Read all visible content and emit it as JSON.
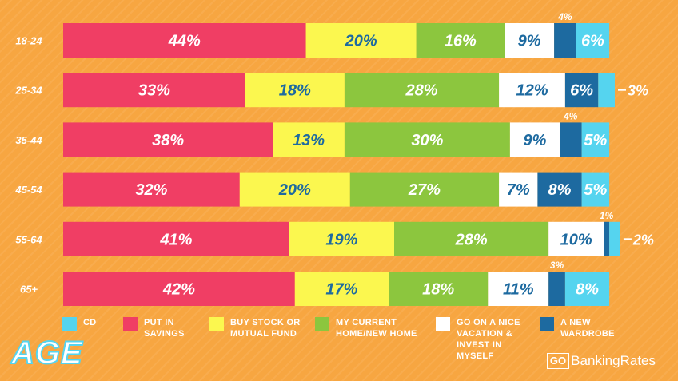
{
  "chart_data": {
    "type": "bar",
    "orientation": "horizontal",
    "stacked": true,
    "categories": [
      "18-24",
      "25-34",
      "35-44",
      "45-54",
      "55-64",
      "65+"
    ],
    "series": [
      {
        "name": "PUT IN SAVINGS",
        "color": "#f03e64",
        "text_color": "#ffffff",
        "values": [
          44,
          33,
          38,
          32,
          41,
          42
        ]
      },
      {
        "name": "BUY STOCK OR MUTUAL FUND",
        "color": "#fbf74f",
        "text_color": "#1d6aa0",
        "values": [
          20,
          18,
          13,
          20,
          19,
          17
        ]
      },
      {
        "name": "MY CURRENT HOME/NEW HOME",
        "color": "#8cc63e",
        "text_color": "#ffffff",
        "values": [
          16,
          28,
          30,
          27,
          28,
          18
        ]
      },
      {
        "name": "GO ON A NICE VACATION & INVEST IN MYSELF",
        "color": "#ffffff",
        "text_color": "#1d6aa0",
        "values": [
          9,
          12,
          9,
          7,
          10,
          11
        ]
      },
      {
        "name": "A NEW WARDROBE",
        "color": "#1d6aa0",
        "text_color": "#ffffff",
        "values": [
          4,
          6,
          4,
          8,
          1,
          3
        ]
      },
      {
        "name": "CD",
        "color": "#55d4ef",
        "text_color": "#ffffff",
        "values": [
          6,
          3,
          5,
          5,
          2,
          8
        ]
      }
    ],
    "value_suffix": "%",
    "xlim": [
      0,
      100
    ],
    "xlabel": "",
    "ylabel": "AGE",
    "legend_position": "bottom",
    "grid": false
  },
  "legend": [
    {
      "label": "CD",
      "color": "#55d4ef"
    },
    {
      "label": "PUT IN SAVINGS",
      "color": "#f03e64"
    },
    {
      "label": "BUY STOCK OR MUTUAL FUND",
      "color": "#fbf74f"
    },
    {
      "label": "MY CURRENT HOME/NEW HOME",
      "color": "#8cc63e"
    },
    {
      "label": "GO ON A NICE VACATION & INVEST IN MYSELF",
      "color": "#ffffff"
    },
    {
      "label": "A NEW WARDROBE",
      "color": "#1d6aa0"
    }
  ],
  "axis_title": "AGE",
  "brand": {
    "box": "GO",
    "text": "BankingRates"
  }
}
